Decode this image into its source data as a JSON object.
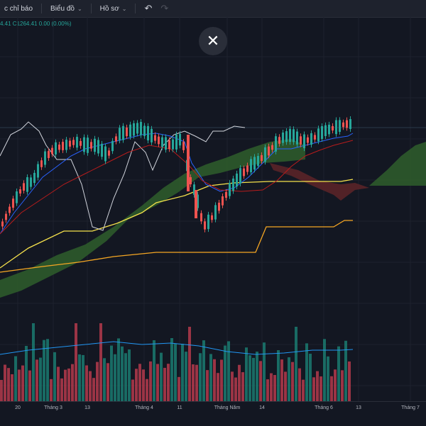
{
  "toolbar": {
    "indicators_label": "c chỉ báo",
    "chart_label": "Biểu đồ",
    "profile_label": "Hồ sơ",
    "undo_icon": "undo-icon",
    "redo_icon": "redo-icon"
  },
  "legend": {
    "ohlc_text": "4.41  C1264.41  0.00 (0.00%)"
  },
  "close_icon": "close-icon",
  "x_axis": {
    "labels": [
      {
        "text": "20",
        "pos": 25
      },
      {
        "text": "Tháng 3",
        "pos": 75
      },
      {
        "text": "13",
        "pos": 123
      },
      {
        "text": "Tháng 4",
        "pos": 203
      },
      {
        "text": "11",
        "pos": 253
      },
      {
        "text": "Tháng Năm",
        "pos": 320
      },
      {
        "text": "14",
        "pos": 369
      },
      {
        "text": "Tháng 6",
        "pos": 456
      },
      {
        "text": "13",
        "pos": 505
      },
      {
        "text": "Tháng 7",
        "pos": 578
      }
    ]
  },
  "colors": {
    "background": "#131722",
    "bull": "#26a69a",
    "bear": "#ef5350",
    "base_line": "#f5e14c",
    "orange_line": "#f5a623",
    "white_line": "#d1d4dc",
    "blue_line": "#2962ff",
    "red_line": "#b71c1c",
    "cloud_green": "#2e5a2b",
    "cloud_red": "#5a2328",
    "volume_bull": "#1b7a70",
    "volume_bear": "#b4394b",
    "volume_ma": "#2196f3"
  }
}
